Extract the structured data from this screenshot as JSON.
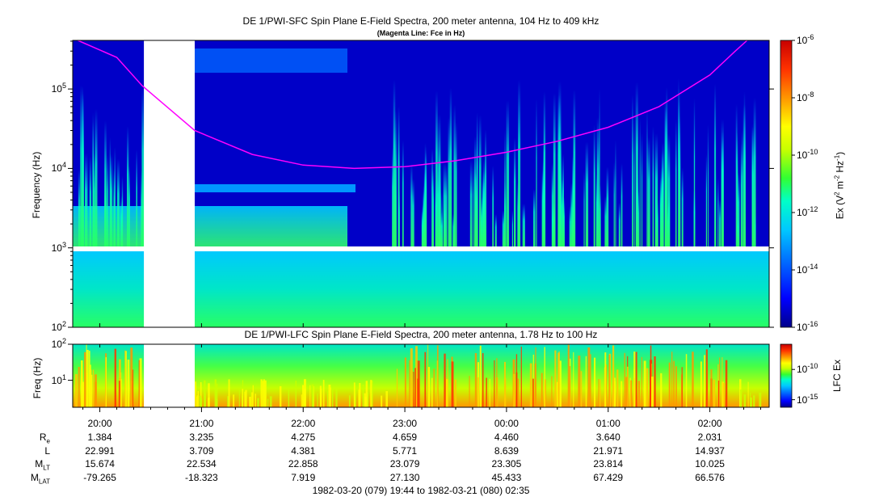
{
  "colors": {
    "background": "#0000c8",
    "magenta_line": "#ff00ff",
    "data_gap": "#ffffff",
    "colorbar": [
      "#00008b",
      "#0000ff",
      "#0064ff",
      "#00c8ff",
      "#00ffc8",
      "#32ff32",
      "#c8ff00",
      "#ffff00",
      "#ff9600",
      "#ff3200",
      "#c80000"
    ]
  },
  "chart_data": [
    {
      "type": "heatmap",
      "title": "DE 1/PWI-SFC  Spin Plane E-Field Spectra, 200 meter antenna, 104 Hz to 409 kHz",
      "subtitle": "(Magenta Line: Fce in Hz)",
      "xlabel": "",
      "ylabel": "Frequency (Hz)",
      "y_scale": "log",
      "ylim": [
        100,
        409000
      ],
      "y_ticks": [
        {
          "base": "10",
          "exp": "2"
        },
        {
          "base": "10",
          "exp": "3"
        },
        {
          "base": "10",
          "exp": "4"
        },
        {
          "base": "10",
          "exp": "5"
        }
      ],
      "colorbar": {
        "label_parts": [
          "Ex (V",
          "2",
          " m",
          "-2",
          " Hz",
          "-1",
          ")"
        ],
        "scale": "log",
        "range": [
          1e-16,
          1e-06
        ],
        "ticks": [
          {
            "base": "10",
            "exp": "-6"
          },
          {
            "base": "10",
            "exp": "-8"
          },
          {
            "base": "10",
            "exp": "-10"
          },
          {
            "base": "10",
            "exp": "-12"
          },
          {
            "base": "10",
            "exp": "-14"
          },
          {
            "base": "10",
            "exp": "-16"
          }
        ]
      },
      "data_gaps": [
        {
          "from": "20:26",
          "to": "20:56"
        }
      ],
      "fce_line": {
        "x": [
          "19:47",
          "20:10",
          "20:25",
          "20:56",
          "21:30",
          "22:00",
          "22:30",
          "23:00",
          "23:30",
          "00:00",
          "00:30",
          "01:00",
          "01:30",
          "02:00",
          "02:15",
          "02:22"
        ],
        "y": [
          409000,
          250000,
          110000,
          30000,
          15000,
          11000,
          10000,
          10500,
          12500,
          16000,
          22000,
          33000,
          60000,
          150000,
          300000,
          409000
        ]
      }
    },
    {
      "type": "heatmap",
      "title": "DE 1/PWI-LFC  Spin Plane E-Field Spectra, 200 meter antenna, 1.78 Hz to 100 Hz",
      "ylabel": "Freq (Hz)",
      "y_scale": "log",
      "ylim": [
        1.78,
        100
      ],
      "y_ticks": [
        {
          "base": "10",
          "exp": "1"
        },
        {
          "base": "10",
          "exp": "2"
        }
      ],
      "colorbar": {
        "label": "LFC Ex",
        "scale": "log",
        "ticks": [
          {
            "base": "10",
            "exp": "-10"
          },
          {
            "base": "10",
            "exp": "-15"
          }
        ]
      },
      "data_gaps": [
        {
          "from": "20:26",
          "to": "20:56"
        }
      ]
    }
  ],
  "time_axis": {
    "ticks": [
      "20:00",
      "21:00",
      "22:00",
      "23:00",
      "00:00",
      "01:00",
      "02:00"
    ]
  },
  "ephemeris": {
    "rows": [
      {
        "label": "R",
        "sub": "e",
        "values": [
          "1.384",
          "3.235",
          "4.275",
          "4.659",
          "4.460",
          "3.640",
          "2.031"
        ]
      },
      {
        "label": "L",
        "sub": "",
        "values": [
          "22.991",
          "3.709",
          "4.381",
          "5.771",
          "8.639",
          "21.971",
          "14.937"
        ]
      },
      {
        "label": "M",
        "sub": "LT",
        "values": [
          "15.674",
          "22.534",
          "22.858",
          "23.079",
          "23.305",
          "23.814",
          "10.025"
        ]
      },
      {
        "label": "M",
        "sub": "LAT",
        "values": [
          "-79.265",
          "-18.323",
          "7.919",
          "27.130",
          "45.433",
          "67.429",
          "66.576"
        ]
      }
    ]
  },
  "time_range": "1982-03-20 (079) 19:44 to 1982-03-21 (080) 02:35"
}
